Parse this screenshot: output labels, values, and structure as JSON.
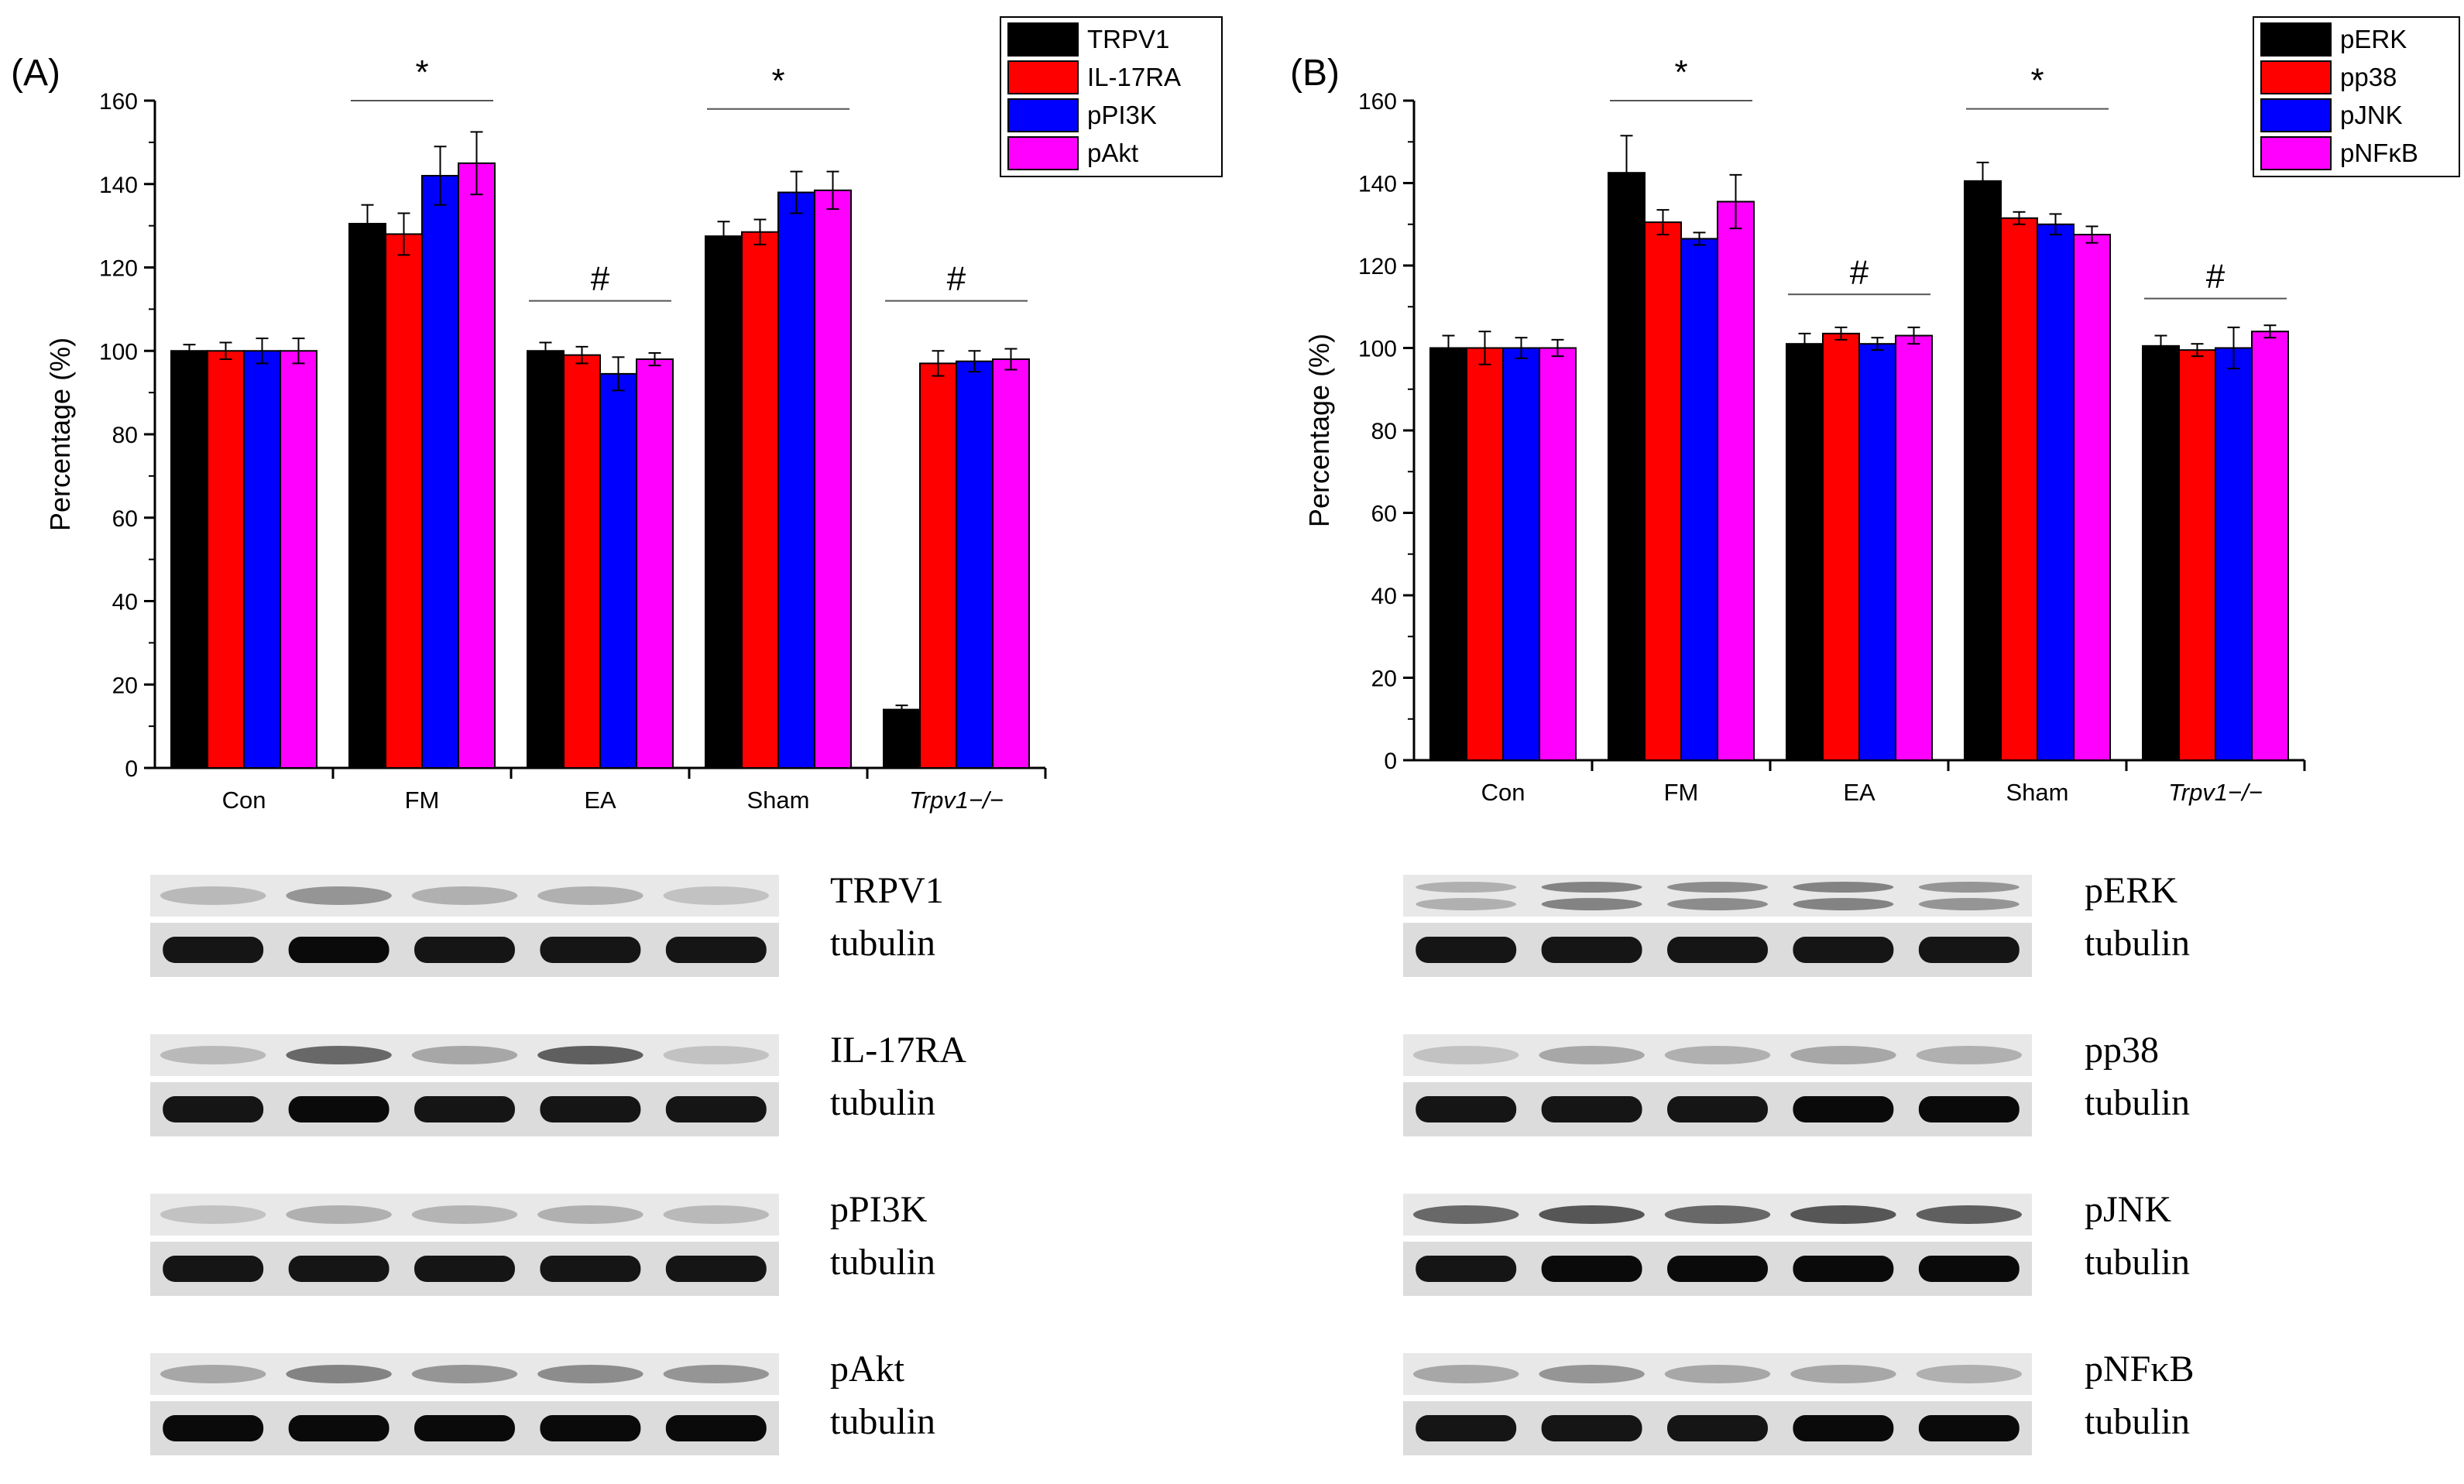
{
  "chart_data": [
    {
      "type": "bar",
      "panel_label": "(A)",
      "ylabel": "Percentage (%)",
      "ylim": [
        0,
        160
      ],
      "yticks": [
        0,
        20,
        40,
        60,
        80,
        100,
        120,
        140,
        160
      ],
      "categories": [
        "Con",
        "FM",
        "EA",
        "Sham",
        "Trpv1−/−"
      ],
      "series": [
        {
          "name": "TRPV1",
          "color": "#000000",
          "values": [
            100,
            130.5,
            100,
            127.5,
            14
          ],
          "errors": [
            1.5,
            4.5,
            2,
            3.5,
            1
          ]
        },
        {
          "name": "IL-17RA",
          "color": "#ff0000",
          "values": [
            100,
            128,
            99,
            128.5,
            97
          ],
          "errors": [
            2,
            5,
            2,
            3,
            3
          ]
        },
        {
          "name": "pPI3K",
          "color": "#0000ff",
          "values": [
            100,
            142,
            94.5,
            138,
            97.5
          ],
          "errors": [
            3,
            7,
            4,
            5,
            2.5
          ]
        },
        {
          "name": "pAkt",
          "color": "#ff00ff",
          "values": [
            100,
            145,
            98,
            138.5,
            98
          ],
          "errors": [
            3,
            7.5,
            1.5,
            4.5,
            2.5
          ]
        }
      ],
      "annotations": [
        {
          "text": "*",
          "groups": [
            "FM"
          ]
        },
        {
          "text": "#",
          "groups": [
            "EA"
          ]
        },
        {
          "text": "*",
          "groups": [
            "Sham"
          ]
        },
        {
          "text": "#",
          "groups": [
            "Trpv1−/−"
          ]
        }
      ],
      "legend_position": "top-right",
      "blots": [
        {
          "target": "TRPV1",
          "loading": "tubulin",
          "target_intensity": [
            0.25,
            0.45,
            0.3,
            0.3,
            0.2
          ],
          "loading_intensity": [
            0.95,
            1.0,
            0.95,
            0.95,
            0.95
          ]
        },
        {
          "target": "IL-17RA",
          "loading": "tubulin",
          "target_intensity": [
            0.25,
            0.7,
            0.35,
            0.75,
            0.2
          ],
          "loading_intensity": [
            0.95,
            1.0,
            0.95,
            0.95,
            0.95
          ]
        },
        {
          "target": "pPI3K",
          "loading": "tubulin",
          "target_intensity": [
            0.2,
            0.3,
            0.28,
            0.3,
            0.25
          ],
          "loading_intensity": [
            0.95,
            0.95,
            0.95,
            0.95,
            0.95
          ]
        },
        {
          "target": "pAkt",
          "loading": "tubulin",
          "target_intensity": [
            0.35,
            0.55,
            0.45,
            0.5,
            0.45
          ],
          "loading_intensity": [
            1.0,
            1.0,
            1.0,
            1.0,
            1.0
          ]
        }
      ]
    },
    {
      "type": "bar",
      "panel_label": "(B)",
      "ylabel": "Percentage (%)",
      "ylim": [
        0,
        160
      ],
      "yticks": [
        0,
        20,
        40,
        60,
        80,
        100,
        120,
        140,
        160
      ],
      "categories": [
        "Con",
        "FM",
        "EA",
        "Sham",
        "Trpv1−/−"
      ],
      "series": [
        {
          "name": "pERK",
          "color": "#000000",
          "values": [
            100,
            142.5,
            101,
            140.5,
            100.5
          ],
          "errors": [
            3,
            9,
            2.5,
            4.5,
            2.5
          ]
        },
        {
          "name": "pp38",
          "color": "#ff0000",
          "values": [
            100,
            130.5,
            103.5,
            131.5,
            99.5
          ],
          "errors": [
            4,
            3,
            1.5,
            1.5,
            1.5
          ]
        },
        {
          "name": "pJNK",
          "color": "#0000ff",
          "values": [
            100,
            126.5,
            101,
            130,
            100
          ],
          "errors": [
            2.5,
            1.5,
            1.5,
            2.5,
            5
          ]
        },
        {
          "name": "pNFκB",
          "color": "#ff00ff",
          "values": [
            100,
            135.5,
            103,
            127.5,
            104
          ],
          "errors": [
            2,
            6.5,
            2,
            2,
            1.5
          ]
        }
      ],
      "annotations": [
        {
          "text": "*",
          "groups": [
            "FM"
          ]
        },
        {
          "text": "#",
          "groups": [
            "EA"
          ]
        },
        {
          "text": "*",
          "groups": [
            "Sham"
          ]
        },
        {
          "text": "#",
          "groups": [
            "Trpv1−/−"
          ]
        }
      ],
      "legend_position": "top-right",
      "blots": [
        {
          "target": "pERK",
          "loading": "tubulin",
          "target_intensity": [
            0.3,
            0.55,
            0.5,
            0.55,
            0.45
          ],
          "loading_intensity": [
            0.95,
            0.95,
            0.95,
            0.95,
            0.95
          ],
          "double_band": true
        },
        {
          "target": "pp38",
          "loading": "tubulin",
          "target_intensity": [
            0.2,
            0.35,
            0.3,
            0.35,
            0.3
          ],
          "loading_intensity": [
            0.95,
            0.95,
            0.95,
            1.0,
            1.0
          ]
        },
        {
          "target": "pJNK",
          "loading": "tubulin",
          "target_intensity": [
            0.7,
            0.8,
            0.7,
            0.8,
            0.75
          ],
          "loading_intensity": [
            0.95,
            1.0,
            1.0,
            1.0,
            1.0
          ]
        },
        {
          "target": "pNFκB",
          "loading": "tubulin",
          "target_intensity": [
            0.35,
            0.45,
            0.35,
            0.35,
            0.3
          ],
          "loading_intensity": [
            0.95,
            0.95,
            0.95,
            1.0,
            1.0
          ]
        }
      ]
    }
  ]
}
